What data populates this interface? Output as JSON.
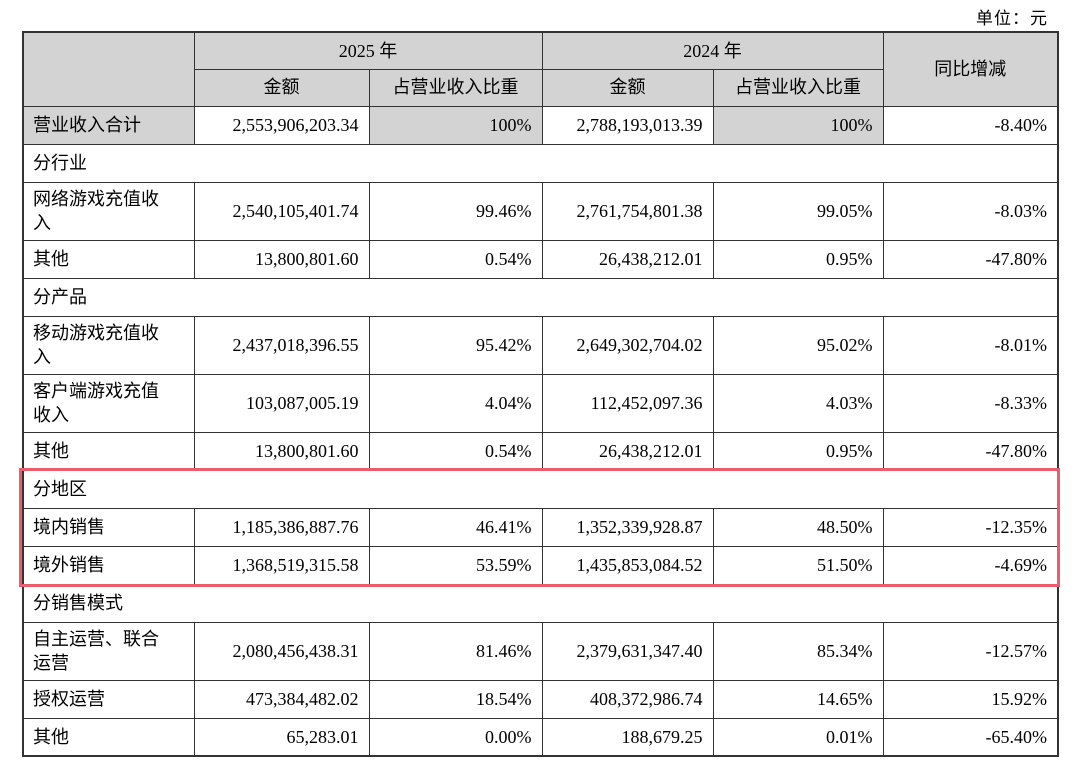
{
  "unit_label": "单位：元",
  "colors": {
    "header_bg": "#d3d3d3",
    "highlight_border": "#ed5c6b",
    "table_border": "#333333"
  },
  "table": {
    "header": {
      "year_2025": "2025 年",
      "year_2024": "2024 年",
      "amount": "金额",
      "pct": "占营业收入比重",
      "yoy": "同比增减"
    },
    "rows": [
      {
        "type": "data",
        "shaded": true,
        "label": "营业收入合计",
        "cells": [
          "2,553,906,203.34",
          "100%",
          "2,788,193,013.39",
          "100%",
          "-8.40%"
        ]
      },
      {
        "type": "section",
        "label": "分行业"
      },
      {
        "type": "data",
        "tall": true,
        "label": "网络游戏充值收入",
        "cells": [
          "2,540,105,401.74",
          "99.46%",
          "2,761,754,801.38",
          "99.05%",
          "-8.03%"
        ]
      },
      {
        "type": "data",
        "label": "其他",
        "cells": [
          "13,800,801.60",
          "0.54%",
          "26,438,212.01",
          "0.95%",
          "-47.80%"
        ]
      },
      {
        "type": "section",
        "label": "分产品"
      },
      {
        "type": "data",
        "tall": true,
        "label": "移动游戏充值收入",
        "cells": [
          "2,437,018,396.55",
          "95.42%",
          "2,649,302,704.02",
          "95.02%",
          "-8.01%"
        ]
      },
      {
        "type": "data",
        "tall": true,
        "label": "客户端游戏充值收入",
        "cells": [
          "103,087,005.19",
          "4.04%",
          "112,452,097.36",
          "4.03%",
          "-8.33%"
        ]
      },
      {
        "type": "data",
        "label": "其他",
        "cells": [
          "13,800,801.60",
          "0.54%",
          "26,438,212.01",
          "0.95%",
          "-47.80%"
        ]
      },
      {
        "type": "section",
        "highlight": true,
        "label": "分地区"
      },
      {
        "type": "data",
        "highlight": true,
        "label": "境内销售",
        "cells": [
          "1,185,386,887.76",
          "46.41%",
          "1,352,339,928.87",
          "48.50%",
          "-12.35%"
        ]
      },
      {
        "type": "data",
        "highlight": true,
        "label": "境外销售",
        "cells": [
          "1,368,519,315.58",
          "53.59%",
          "1,435,853,084.52",
          "51.50%",
          "-4.69%"
        ]
      },
      {
        "type": "section",
        "label": "分销售模式"
      },
      {
        "type": "data",
        "tall": true,
        "label": "自主运营、联合运营",
        "cells": [
          "2,080,456,438.31",
          "81.46%",
          "2,379,631,347.40",
          "85.34%",
          "-12.57%"
        ]
      },
      {
        "type": "data",
        "label": "授权运营",
        "cells": [
          "473,384,482.02",
          "18.54%",
          "408,372,986.74",
          "14.65%",
          "15.92%"
        ]
      },
      {
        "type": "data",
        "label": "其他",
        "cells": [
          "65,283.01",
          "0.00%",
          "188,679.25",
          "0.01%",
          "-65.40%"
        ]
      }
    ]
  }
}
